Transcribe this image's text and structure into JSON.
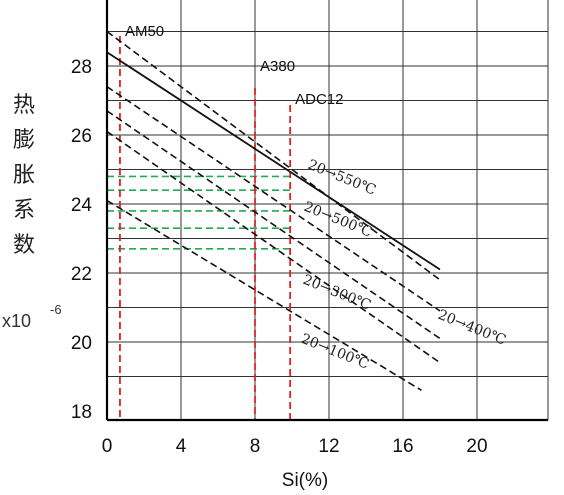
{
  "chart_data": {
    "type": "line",
    "title": "",
    "xlabel": "Si(%)",
    "ylabel": "热膨胀系数",
    "yunit_prefix": "x10",
    "yunit_exp": "-6",
    "xlim": [
      0,
      24
    ],
    "ylim": [
      17.7,
      30
    ],
    "xticks": [
      0,
      4,
      8,
      12,
      16,
      20
    ],
    "yticks": [
      18,
      20,
      22,
      24,
      26,
      28
    ],
    "grid": true,
    "series": [
      {
        "name": "20→550℃",
        "style": "dashed",
        "x": [
          0,
          18
        ],
        "y": [
          29.0,
          21.8
        ]
      },
      {
        "name": "",
        "style": "solid",
        "x": [
          0,
          18
        ],
        "y": [
          28.4,
          22.1
        ]
      },
      {
        "name": "20→500℃",
        "style": "dashed",
        "x": [
          0,
          18
        ],
        "y": [
          27.4,
          20.9
        ]
      },
      {
        "name": "20→400℃",
        "style": "dashed",
        "x": [
          0,
          18
        ],
        "y": [
          26.7,
          20.1
        ]
      },
      {
        "name": "20→300℃",
        "style": "dashed",
        "x": [
          0,
          18
        ],
        "y": [
          26.1,
          19.4
        ]
      },
      {
        "name": "20→100℃",
        "style": "dashed",
        "x": [
          0,
          17
        ],
        "y": [
          24.1,
          18.6
        ]
      }
    ],
    "alloy_lines": [
      {
        "name": "AM50",
        "x": 0.7
      },
      {
        "name": "A380",
        "x": 8.0
      },
      {
        "name": "ADC12",
        "x": 9.9
      }
    ],
    "green_levels": [
      24.8,
      24.4,
      23.8,
      23.3,
      22.7
    ]
  }
}
